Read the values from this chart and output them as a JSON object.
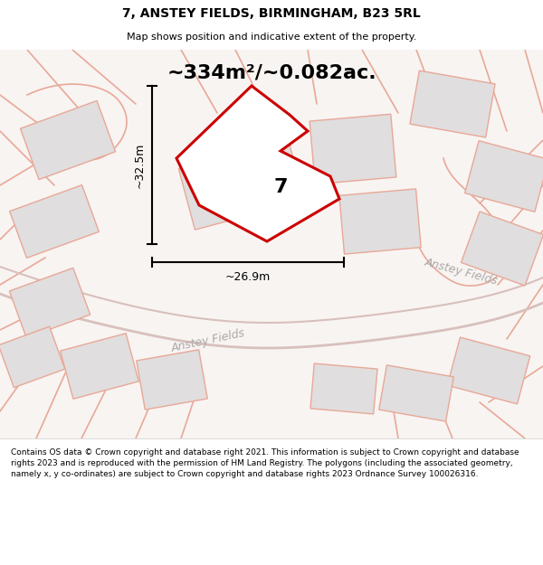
{
  "title": "7, ANSTEY FIELDS, BIRMINGHAM, B23 5RL",
  "subtitle": "Map shows position and indicative extent of the property.",
  "area_text": "~334m²/~0.082ac.",
  "dim_width": "~26.9m",
  "dim_height": "~32.5m",
  "plot_label": "7",
  "road_label1": "Anstey Fields",
  "road_label2": "Anstey Fields",
  "footer": "Contains OS data © Crown copyright and database right 2021. This information is subject to Crown copyright and database rights 2023 and is reproduced with the permission of HM Land Registry. The polygons (including the associated geometry, namely x, y co-ordinates) are subject to Crown copyright and database rights 2023 Ordnance Survey 100026316.",
  "bg_color": "#f5f0f0",
  "map_bg": "#f0ece8",
  "highlight_color": "#cc0000",
  "building_fill": "#e0dede",
  "building_stroke": "#e8a898",
  "road_line_color": "#e8a898",
  "road_curve_color": "#d8c8c4",
  "text_color_road": "#b0a0a0",
  "footer_bg": "#ffffff"
}
